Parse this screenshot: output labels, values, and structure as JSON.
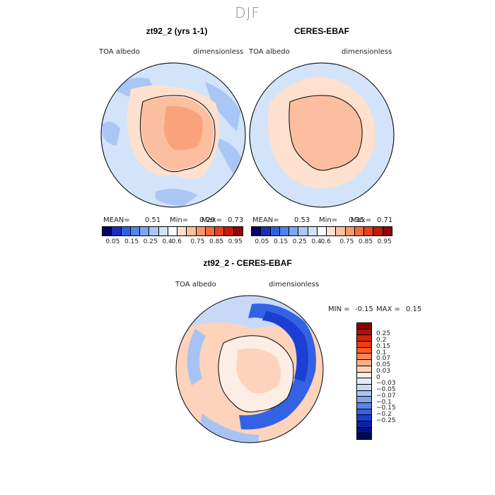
{
  "season": "DJF",
  "panels": [
    {
      "title": "zt92_2 (yrs 1-1)",
      "field": "TOA albedo",
      "units": "dimensionless",
      "stats": {
        "mean_label": "MEAN=",
        "mean": "0.51",
        "min_label": "Min=",
        "min": "0.29",
        "max_label": "Max=",
        "max": "0.73"
      }
    },
    {
      "title": "CERES-EBAF",
      "field": "TOA albedo",
      "units": "dimensionless",
      "stats": {
        "mean_label": "MEAN=",
        "mean": "0.53",
        "min_label": "Min=",
        "min": "0.35",
        "max_label": "Max=",
        "max": "0.71"
      }
    }
  ],
  "top_colorbar": {
    "labels": [
      "0.05",
      "0.15",
      "0.25",
      "0.4",
      "0.6",
      "0.75",
      "0.85",
      "0.95"
    ],
    "colors": [
      "#08006b",
      "#1a2fb8",
      "#2f5fe6",
      "#4f83ee",
      "#7ba6f2",
      "#a9c6f5",
      "#d0e2fa",
      "#ffffff",
      "#fde0ce",
      "#fbbf9f",
      "#f9966c",
      "#f66a3d",
      "#e8401f",
      "#c31a0e",
      "#8f0505"
    ]
  },
  "diff_panel": {
    "title": "zt92_2 - CERES-EBAF",
    "field": "TOA albedo",
    "units": "dimensionless",
    "min_label": "MIN =",
    "min": "-0.15",
    "max_label": "MAX =",
    "max": "0.15"
  },
  "diff_colorbar": {
    "labels": [
      "0.25",
      "0.2",
      "0.15",
      "0.1",
      "0.07",
      "0.05",
      "0.03",
      "0",
      "−0.03",
      "−0.05",
      "−0.07",
      "−0.1",
      "−0.15",
      "−0.2",
      "−0.25"
    ],
    "colors": [
      "#8b0000",
      "#b10f06",
      "#d4220b",
      "#ee3a13",
      "#fb5a26",
      "#fc8356",
      "#fdae88",
      "#fdd3bb",
      "#fceee5",
      "#e4ecfa",
      "#c8d9f7",
      "#a8c3f3",
      "#82a6ee",
      "#5a83ea",
      "#3462e4",
      "#1b3fd2",
      "#0c22ab",
      "#061280",
      "#020a56"
    ]
  }
}
